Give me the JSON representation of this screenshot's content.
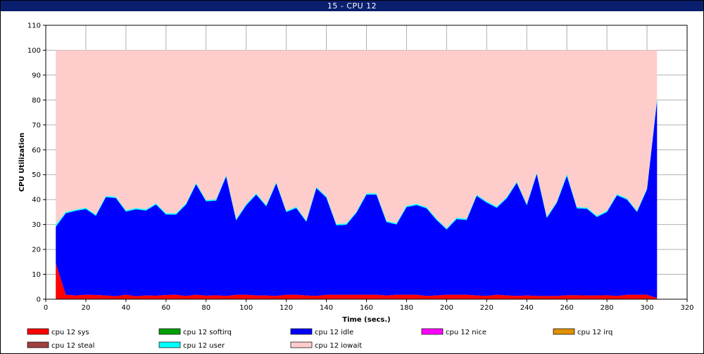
{
  "window": {
    "title": "15 - CPU 12"
  },
  "chart_data": {
    "type": "area",
    "stacked": true,
    "title": "15 - CPU 12",
    "xlabel": "Time (secs.)",
    "ylabel": "CPU Utilization",
    "xlim": [
      0,
      320
    ],
    "ylim": [
      0,
      110
    ],
    "x_ticks": [
      0,
      20,
      40,
      60,
      80,
      100,
      120,
      140,
      160,
      180,
      200,
      220,
      240,
      260,
      280,
      300,
      320
    ],
    "y_ticks": [
      0,
      10,
      20,
      30,
      40,
      50,
      60,
      70,
      80,
      90,
      100,
      110
    ],
    "grid": true,
    "legend_placement": "bottom",
    "x": [
      5,
      10,
      15,
      20,
      25,
      30,
      35,
      40,
      45,
      50,
      55,
      60,
      65,
      70,
      75,
      80,
      85,
      90,
      95,
      100,
      105,
      110,
      115,
      120,
      125,
      130,
      135,
      140,
      145,
      150,
      155,
      160,
      165,
      170,
      175,
      180,
      185,
      190,
      195,
      200,
      205,
      210,
      215,
      220,
      225,
      230,
      235,
      240,
      245,
      250,
      255,
      260,
      265,
      270,
      275,
      280,
      285,
      290,
      295,
      300,
      305
    ],
    "series": [
      {
        "name": "cpu 12 sys",
        "color": "#ff0000",
        "values": [
          14.5,
          1.8,
          1.5,
          1.8,
          1.7,
          1.5,
          1.2,
          1.8,
          1.2,
          1.5,
          1.4,
          1.7,
          1.8,
          1.3,
          1.8,
          1.4,
          1.6,
          1.3,
          1.8,
          1.8,
          1.5,
          1.5,
          1.3,
          1.8,
          1.8,
          1.5,
          1.3,
          1.8,
          1.8,
          1.8,
          1.8,
          1.8,
          1.8,
          1.5,
          1.8,
          1.8,
          1.8,
          1.3,
          1.5,
          1.8,
          1.8,
          1.8,
          1.5,
          1.3,
          1.8,
          1.5,
          1.3,
          1.5,
          1.3,
          1.3,
          1.3,
          1.6,
          1.6,
          1.5,
          1.5,
          1.6,
          1.3,
          1.8,
          1.8,
          1.8,
          0.5
        ]
      },
      {
        "name": "cpu 12 softirq",
        "color": "#00a000",
        "values": [
          0,
          0,
          0,
          0,
          0,
          0,
          0,
          0,
          0,
          0,
          0,
          0,
          0,
          0,
          0,
          0,
          0,
          0,
          0,
          0,
          0,
          0,
          0,
          0,
          0,
          0,
          0,
          0,
          0,
          0,
          0,
          0,
          0,
          0,
          0,
          0,
          0,
          0,
          0,
          0,
          0,
          0,
          0,
          0,
          0,
          0,
          0,
          0,
          0,
          0,
          0,
          0,
          0,
          0,
          0,
          0,
          0,
          0,
          0,
          0,
          0
        ]
      },
      {
        "name": "cpu 12 idle",
        "color": "#0000ff",
        "values": [
          14.5,
          32.7,
          34.0,
          34.4,
          31.8,
          39.5,
          39.4,
          33.4,
          34.9,
          34.1,
          36.6,
          32.3,
          32.2,
          36.7,
          44.4,
          37.9,
          38.0,
          48.0,
          29.9,
          35.9,
          40.5,
          35.8,
          45.2,
          33.2,
          34.8,
          29.6,
          43.3,
          39.0,
          27.9,
          28.1,
          32.9,
          40.2,
          40.2,
          29.5,
          28.2,
          35.2,
          36.0,
          35.2,
          30.3,
          26.2,
          30.4,
          30.0,
          40.0,
          37.5,
          34.9,
          39.0,
          45.4,
          36.2,
          49.0,
          31.3,
          37.4,
          47.9,
          34.9,
          34.8,
          31.5,
          33.4,
          40.4,
          38.2,
          33.2,
          42.3,
          79.3
        ]
      },
      {
        "name": "cpu 12 nice",
        "color": "#ff00ff",
        "values": [
          0,
          0,
          0,
          0,
          0,
          0,
          0,
          0,
          0,
          0,
          0,
          0,
          0,
          0,
          0,
          0,
          0,
          0,
          0,
          0,
          0,
          0,
          0,
          0,
          0,
          0,
          0,
          0,
          0,
          0,
          0,
          0,
          0,
          0,
          0,
          0,
          0,
          0,
          0,
          0,
          0,
          0,
          0,
          0,
          0,
          0,
          0,
          0,
          0,
          0,
          0,
          0,
          0,
          0,
          0,
          0,
          0,
          0,
          0,
          0,
          0
        ]
      },
      {
        "name": "cpu 12 irq",
        "color": "#e09000",
        "values": [
          0,
          0,
          0,
          0,
          0,
          0,
          0,
          0,
          0,
          0,
          0,
          0,
          0,
          0,
          0,
          0,
          0,
          0,
          0,
          0,
          0,
          0,
          0,
          0,
          0,
          0,
          0,
          0,
          0,
          0,
          0,
          0,
          0,
          0,
          0,
          0,
          0,
          0,
          0,
          0,
          0,
          0,
          0,
          0,
          0,
          0,
          0,
          0,
          0,
          0,
          0,
          0,
          0,
          0,
          0,
          0,
          0,
          0,
          0,
          0,
          0
        ]
      },
      {
        "name": "cpu 12 steal",
        "color": "#a04040",
        "values": [
          0,
          0,
          0,
          0,
          0,
          0,
          0,
          0,
          0,
          0,
          0,
          0,
          0,
          0,
          0,
          0,
          0,
          0,
          0,
          0,
          0,
          0,
          0,
          0,
          0,
          0,
          0,
          0,
          0,
          0,
          0,
          0,
          0,
          0,
          0,
          0,
          0,
          0,
          0,
          0,
          0,
          0,
          0,
          0,
          0,
          0,
          0,
          0,
          0,
          0,
          0,
          0,
          0,
          0,
          0,
          0,
          0,
          0,
          0,
          0,
          0
        ]
      },
      {
        "name": "cpu 12 user",
        "color": "#00ffff",
        "values": [
          1.0,
          0.5,
          0.5,
          0.5,
          0.5,
          0.5,
          0.5,
          0.5,
          0.5,
          0.5,
          0.5,
          0.5,
          0.5,
          0.5,
          0.5,
          0.5,
          0.5,
          0.5,
          0.5,
          0.5,
          0.5,
          0.5,
          0.5,
          0.5,
          0.5,
          0.5,
          0.5,
          0.5,
          0.5,
          0.5,
          0.5,
          0.5,
          0.5,
          0.5,
          0.5,
          0.5,
          0.5,
          0.5,
          0.5,
          0.5,
          0.5,
          0.5,
          0.5,
          0.5,
          0.5,
          0.5,
          0.5,
          0.5,
          0.5,
          0.5,
          0.5,
          0.8,
          0.5,
          0.5,
          0.5,
          0.5,
          0.5,
          0.5,
          0.5,
          0.5,
          1.0
        ]
      },
      {
        "name": "cpu 12 iowait",
        "color": "#ffcccc",
        "values": [
          70.0,
          65.0,
          64.0,
          63.3,
          66.0,
          58.5,
          58.9,
          64.3,
          63.4,
          63.9,
          61.5,
          65.5,
          65.5,
          61.5,
          53.3,
          60.2,
          59.9,
          50.2,
          67.8,
          61.8,
          57.5,
          62.2,
          53.0,
          64.5,
          62.9,
          68.4,
          54.9,
          58.7,
          69.8,
          69.6,
          64.8,
          57.5,
          57.5,
          68.5,
          69.5,
          62.5,
          61.7,
          63.0,
          67.7,
          71.5,
          67.3,
          67.7,
          58.0,
          60.7,
          62.8,
          59.0,
          52.8,
          61.8,
          49.2,
          66.9,
          60.8,
          49.7,
          63.0,
          63.2,
          66.5,
          64.5,
          57.8,
          59.5,
          64.5,
          55.4,
          19.2
        ]
      }
    ]
  }
}
